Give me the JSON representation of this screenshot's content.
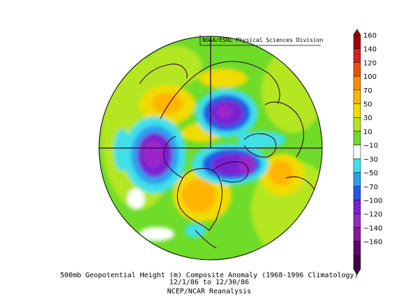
{
  "map": {
    "credit": "NOAA/ESRL Physical Sciences Division",
    "caption_line1": "500mb Geopotential Height (m) Composite Anomaly (1968-1996 Climatology)",
    "caption_line2": "12/1/86  to 12/30/86",
    "caption_line3": "NCEP/NCAR Reanalysis",
    "projection": "polar-stereographic-north",
    "features": [
      {
        "name": "negative-anomaly-north-pacific",
        "sign": "negative",
        "color": "#9a20c0"
      },
      {
        "name": "negative-anomaly-arctic-siberia",
        "sign": "negative",
        "color": "#8a1ec0"
      },
      {
        "name": "negative-anomaly-hudson-bay",
        "sign": "negative",
        "color": "#6a18b8"
      },
      {
        "name": "positive-anomaly-western-north-america",
        "sign": "positive",
        "color": "#e6c800"
      },
      {
        "name": "positive-anomaly-europe",
        "sign": "positive",
        "color": "#e6c800"
      },
      {
        "name": "positive-anomaly-east-asia",
        "sign": "positive",
        "color": "#e6c800"
      }
    ]
  },
  "colorbar": {
    "labels": [
      "160",
      "140",
      "120",
      "100",
      "70",
      "50",
      "30",
      "10",
      "−10",
      "−30",
      "−50",
      "−70",
      "−100",
      "−120",
      "−140",
      "−160"
    ],
    "colors": [
      "#a00000",
      "#d42020",
      "#ee5000",
      "#ff8c00",
      "#ffb400",
      "#f0dc00",
      "#b4e620",
      "#6edc28",
      "#ffffff",
      "#40e0e8",
      "#28a0f0",
      "#1e5ae6",
      "#7820d2",
      "#9a28c8",
      "#8c14a0",
      "#64006e",
      "#3c0046"
    ]
  }
}
